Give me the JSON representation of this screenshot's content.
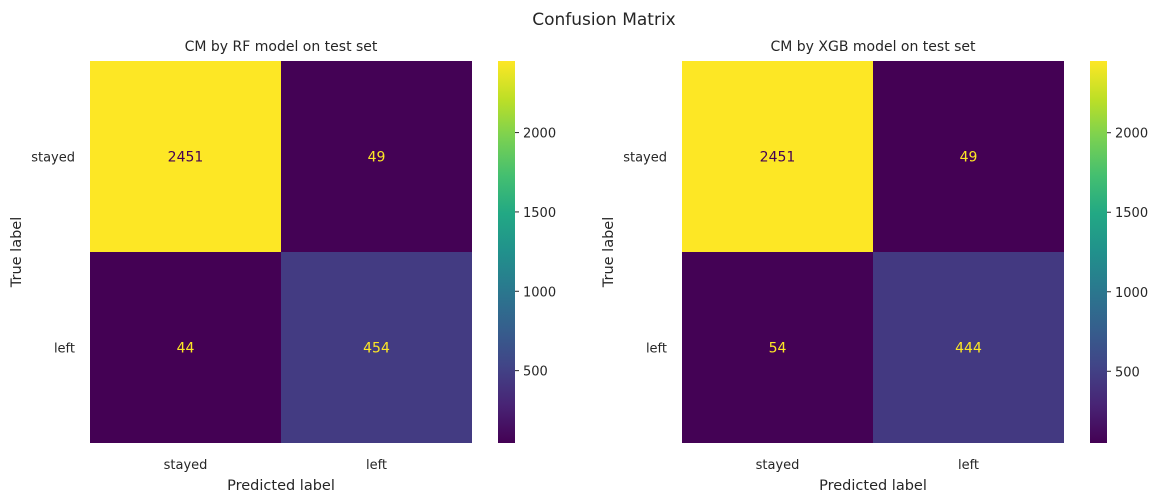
{
  "figure": {
    "title": "Confusion Matrix"
  },
  "chart_data": [
    {
      "type": "heatmap",
      "title": "CM by RF model on test set",
      "xlabel": "Predicted label",
      "ylabel": "True label",
      "x_categories": [
        "stayed",
        "left"
      ],
      "y_categories": [
        "stayed",
        "left"
      ],
      "values": [
        [
          2451,
          49
        ],
        [
          44,
          454
        ]
      ],
      "colorbar": {
        "ticks": [
          500,
          1000,
          1500,
          2000
        ],
        "colormap": "viridis"
      },
      "grid": false
    },
    {
      "type": "heatmap",
      "title": "CM by XGB model on test set",
      "xlabel": "Predicted label",
      "ylabel": "True label",
      "x_categories": [
        "stayed",
        "left"
      ],
      "y_categories": [
        "stayed",
        "left"
      ],
      "values": [
        [
          2451,
          49
        ],
        [
          54,
          444
        ]
      ],
      "colorbar": {
        "ticks": [
          500,
          1000,
          1500,
          2000
        ],
        "colormap": "viridis"
      },
      "grid": false
    }
  ],
  "colors": {
    "text": "#262626",
    "value_on_light": "#440154",
    "value_on_dark": "#fde725"
  }
}
